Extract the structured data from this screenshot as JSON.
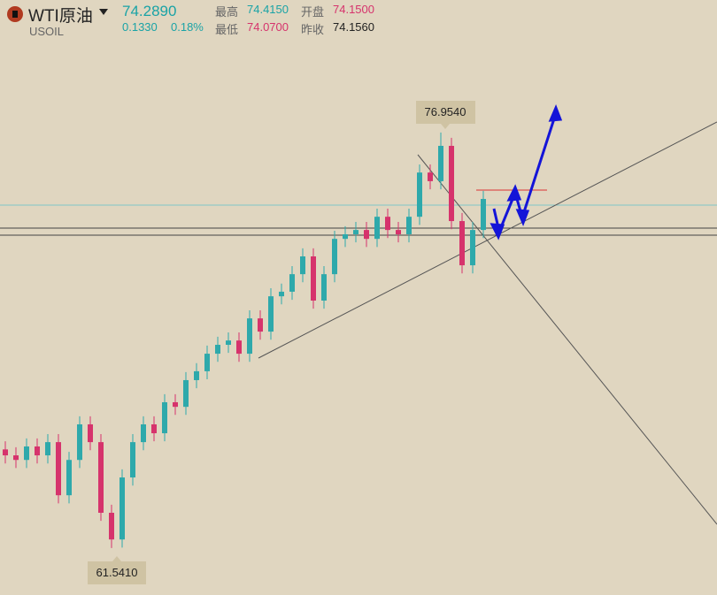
{
  "header": {
    "symbol": "WTI原油",
    "code": "USOIL",
    "price": "74.2890",
    "change": "0.1330",
    "change_pct": "0.18%",
    "high_label": "最高",
    "high": "74.4150",
    "open_label": "开盘",
    "open": "74.1500",
    "low_label": "最低",
    "low": "74.0700",
    "prev_label": "昨收",
    "prev": "74.1560"
  },
  "chart_data": {
    "type": "candlestick",
    "ylim": [
      59.8,
      81.87
    ],
    "up_color": "#2ea9ab",
    "down_color": "#d6336c",
    "max_label": {
      "value": 76.954,
      "label": "76.9540"
    },
    "min_label": {
      "value": 61.541,
      "label": "61.5410"
    },
    "candles": [
      [
        65.2,
        65.5,
        64.68,
        64.98
      ],
      [
        64.98,
        65.28,
        64.51,
        64.81
      ],
      [
        64.81,
        65.61,
        64.51,
        65.31
      ],
      [
        65.31,
        65.61,
        64.68,
        64.98
      ],
      [
        64.98,
        65.77,
        64.68,
        65.47
      ],
      [
        65.47,
        65.77,
        63.2,
        63.5
      ],
      [
        63.5,
        65.11,
        63.2,
        64.81
      ],
      [
        64.81,
        66.43,
        64.51,
        66.13
      ],
      [
        66.13,
        66.43,
        65.17,
        65.47
      ],
      [
        65.47,
        65.77,
        62.55,
        62.85
      ],
      [
        62.85,
        63.15,
        61.541,
        61.86
      ],
      [
        61.86,
        64.46,
        61.56,
        64.16
      ],
      [
        64.16,
        65.77,
        63.86,
        65.47
      ],
      [
        65.47,
        66.43,
        65.17,
        66.13
      ],
      [
        66.13,
        66.43,
        65.5,
        65.8
      ],
      [
        65.8,
        67.25,
        65.5,
        66.95
      ],
      [
        66.95,
        67.25,
        66.48,
        66.78
      ],
      [
        66.78,
        68.07,
        66.48,
        67.77
      ],
      [
        67.77,
        68.4,
        67.47,
        68.1
      ],
      [
        68.1,
        69.05,
        67.8,
        68.75
      ],
      [
        68.75,
        69.38,
        68.45,
        69.08
      ],
      [
        69.08,
        69.54,
        68.78,
        69.24
      ],
      [
        69.24,
        69.54,
        68.45,
        68.75
      ],
      [
        68.75,
        70.36,
        68.45,
        70.06
      ],
      [
        70.06,
        70.36,
        69.27,
        69.57
      ],
      [
        69.57,
        71.18,
        69.27,
        70.88
      ],
      [
        70.88,
        71.35,
        70.58,
        71.05
      ],
      [
        71.05,
        72.0,
        70.75,
        71.7
      ],
      [
        71.7,
        72.66,
        71.4,
        72.36
      ],
      [
        72.36,
        72.66,
        70.42,
        70.72
      ],
      [
        70.72,
        72.0,
        70.42,
        71.7
      ],
      [
        71.7,
        73.31,
        71.4,
        73.01
      ],
      [
        73.01,
        73.48,
        72.71,
        73.18
      ],
      [
        73.18,
        73.64,
        72.88,
        73.34
      ],
      [
        73.34,
        73.64,
        72.71,
        73.01
      ],
      [
        73.01,
        74.13,
        72.71,
        73.83
      ],
      [
        73.83,
        74.13,
        73.04,
        73.34
      ],
      [
        73.34,
        73.64,
        72.88,
        73.18
      ],
      [
        73.18,
        74.13,
        72.88,
        73.83
      ],
      [
        73.83,
        75.77,
        73.53,
        75.47
      ],
      [
        75.47,
        75.77,
        74.85,
        75.15
      ],
      [
        75.15,
        76.954,
        74.85,
        76.46
      ],
      [
        76.46,
        76.76,
        73.37,
        73.67
      ],
      [
        73.67,
        73.97,
        71.73,
        72.03
      ],
      [
        72.03,
        73.64,
        71.73,
        73.34
      ],
      [
        73.34,
        74.79,
        73.04,
        74.49
      ]
    ]
  }
}
